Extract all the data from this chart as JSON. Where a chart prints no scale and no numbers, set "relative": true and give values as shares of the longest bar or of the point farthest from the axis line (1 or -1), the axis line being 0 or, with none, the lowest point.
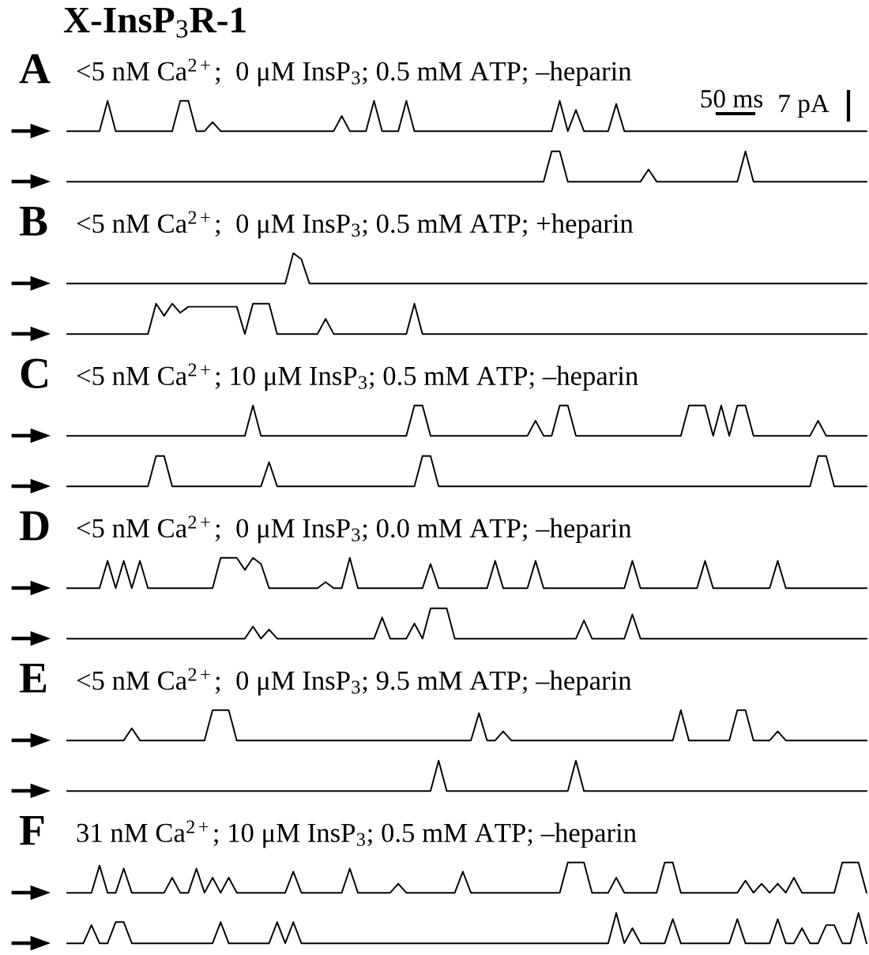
{
  "chart_data": [
    {
      "type": "step",
      "relative": true,
      "title": "A",
      "subtitle": "<5 nM Ca$^{2+}$;  0 μM InsP$_{3}$; 0.5 mM ATP; –heparin",
      "annotations": [
        "X-InsP$_{3}$R-1",
        "50 ms",
        "7 pA"
      ],
      "color": "#000000",
      "categories": [
        null,
        null,
        null,
        null,
        null,
        null,
        null,
        null,
        null,
        null,
        null,
        null,
        null,
        null,
        null,
        null,
        null,
        null,
        null,
        null,
        null,
        null,
        null,
        null,
        null,
        null,
        null,
        null,
        null,
        null,
        null,
        null,
        null,
        null,
        null,
        null,
        null,
        null,
        null,
        null,
        null,
        null,
        null,
        null,
        null,
        null,
        null,
        null,
        null,
        null,
        null,
        null,
        null,
        null,
        null,
        null,
        null,
        null,
        null,
        null,
        null,
        null,
        null,
        null,
        null,
        null,
        null,
        null,
        null,
        null,
        null,
        null,
        null,
        null,
        null,
        null,
        null,
        null,
        null,
        null,
        null,
        null,
        null,
        null,
        null,
        null,
        null,
        null,
        null,
        null,
        null,
        null,
        null,
        null,
        null,
        null,
        null,
        null,
        null,
        null
      ],
      "values": [
        0,
        0,
        0,
        0,
        0,
        1,
        0,
        0,
        0,
        0,
        0,
        0,
        0,
        0,
        1,
        1,
        0,
        0,
        0.3,
        0,
        0,
        0,
        0,
        0,
        0,
        0,
        0,
        0,
        0,
        0,
        0,
        0,
        0,
        0,
        0.5,
        0,
        0,
        0,
        1,
        0,
        0,
        0,
        1,
        0,
        0,
        0,
        0,
        0,
        0,
        0,
        0,
        0,
        0,
        0,
        0,
        0,
        0,
        0,
        0,
        0,
        0,
        1,
        0,
        0.7,
        0,
        0,
        0,
        0,
        0.9,
        0,
        0,
        0,
        0,
        0,
        0,
        0,
        0,
        0,
        0,
        0,
        0,
        0,
        0,
        0,
        0,
        0,
        0,
        0,
        0,
        0,
        0,
        0,
        0,
        0,
        0,
        0,
        0,
        0,
        0,
        0
      ]
    },
    {
      "type": "step",
      "relative": true,
      "color": "#000000",
      "categories": [
        null,
        null,
        null,
        null,
        null,
        null,
        null,
        null,
        null,
        null,
        null,
        null,
        null,
        null,
        null,
        null,
        null,
        null,
        null,
        null,
        null,
        null,
        null,
        null,
        null,
        null,
        null,
        null,
        null,
        null,
        null,
        null,
        null,
        null,
        null,
        null,
        null,
        null,
        null,
        null,
        null,
        null,
        null,
        null,
        null,
        null,
        null,
        null,
        null,
        null,
        null,
        null,
        null,
        null,
        null,
        null,
        null,
        null,
        null,
        null,
        null,
        null,
        null,
        null,
        null,
        null,
        null,
        null,
        null,
        null,
        null,
        null,
        null,
        null,
        null,
        null,
        null,
        null,
        null,
        null,
        null,
        null,
        null,
        null,
        null,
        null,
        null,
        null,
        null,
        null,
        null,
        null,
        null,
        null,
        null,
        null,
        null,
        null,
        null,
        null
      ],
      "values": [
        0,
        0,
        0,
        0,
        0,
        0,
        0,
        0,
        0,
        0,
        0,
        0,
        0,
        0,
        0,
        0,
        0,
        0,
        0,
        0,
        0,
        0,
        0,
        0,
        0,
        0,
        0,
        0,
        0,
        0,
        0,
        0,
        0,
        0,
        0,
        0,
        0,
        0,
        0,
        0,
        0,
        0,
        0,
        0,
        0,
        0,
        0,
        0,
        0,
        0,
        0,
        0,
        0,
        0,
        0,
        0,
        0,
        0,
        0,
        0,
        1,
        1,
        0,
        0,
        0,
        0,
        0,
        0,
        0,
        0,
        0,
        0,
        0.4,
        0,
        0,
        0,
        0,
        0,
        0,
        0,
        0,
        0,
        0,
        0,
        1,
        0,
        0,
        0,
        0,
        0,
        0,
        0,
        0,
        0,
        0,
        0,
        0,
        0,
        0,
        0
      ]
    },
    {
      "type": "step",
      "relative": true,
      "title": "B",
      "subtitle": "<5 nM Ca$^{2+}$;  0 μM InsP$_{3}$; 0.5 mM ATP; +heparin",
      "color": "#000000",
      "categories": [
        null,
        null,
        null,
        null,
        null,
        null,
        null,
        null,
        null,
        null,
        null,
        null,
        null,
        null,
        null,
        null,
        null,
        null,
        null,
        null,
        null,
        null,
        null,
        null,
        null,
        null,
        null,
        null,
        null,
        null,
        null,
        null,
        null,
        null,
        null,
        null,
        null,
        null,
        null,
        null,
        null,
        null,
        null,
        null,
        null,
        null,
        null,
        null,
        null,
        null,
        null,
        null,
        null,
        null,
        null,
        null,
        null,
        null,
        null,
        null,
        null,
        null,
        null,
        null,
        null,
        null,
        null,
        null,
        null,
        null,
        null,
        null,
        null,
        null,
        null,
        null,
        null,
        null,
        null,
        null,
        null,
        null,
        null,
        null,
        null,
        null,
        null,
        null,
        null,
        null,
        null,
        null,
        null,
        null,
        null,
        null,
        null,
        null,
        null,
        null
      ],
      "values": [
        0,
        0,
        0,
        0,
        0,
        0,
        0,
        0,
        0,
        0,
        0,
        0,
        0,
        0,
        0,
        0,
        0,
        0,
        0,
        0,
        0,
        0,
        0,
        0,
        0,
        0,
        0,
        0,
        1,
        0.8,
        0,
        0,
        0,
        0,
        0,
        0,
        0,
        0,
        0,
        0,
        0,
        0,
        0,
        0,
        0,
        0,
        0,
        0,
        0,
        0,
        0,
        0,
        0,
        0,
        0,
        0,
        0,
        0,
        0,
        0,
        0,
        0,
        0,
        0,
        0,
        0,
        0,
        0,
        0,
        0,
        0,
        0,
        0,
        0,
        0,
        0,
        0,
        0,
        0,
        0,
        0,
        0,
        0,
        0,
        0,
        0,
        0,
        0,
        0,
        0,
        0,
        0,
        0,
        0,
        0,
        0,
        0,
        0,
        0,
        0
      ]
    },
    {
      "type": "step",
      "relative": true,
      "color": "#000000",
      "categories": [
        null,
        null,
        null,
        null,
        null,
        null,
        null,
        null,
        null,
        null,
        null,
        null,
        null,
        null,
        null,
        null,
        null,
        null,
        null,
        null,
        null,
        null,
        null,
        null,
        null,
        null,
        null,
        null,
        null,
        null,
        null,
        null,
        null,
        null,
        null,
        null,
        null,
        null,
        null,
        null,
        null,
        null,
        null,
        null,
        null,
        null,
        null,
        null,
        null,
        null,
        null,
        null,
        null,
        null,
        null,
        null,
        null,
        null,
        null,
        null,
        null,
        null,
        null,
        null,
        null,
        null,
        null,
        null,
        null,
        null,
        null,
        null,
        null,
        null,
        null,
        null,
        null,
        null,
        null,
        null,
        null,
        null,
        null,
        null,
        null,
        null,
        null,
        null,
        null,
        null,
        null,
        null,
        null,
        null,
        null,
        null,
        null,
        null,
        null,
        null
      ],
      "values": [
        0,
        0,
        0,
        0,
        0,
        0,
        0,
        0,
        0,
        0,
        0,
        1,
        0.6,
        1,
        0.7,
        0.9,
        0.9,
        0.9,
        0.9,
        0.9,
        0.9,
        0.9,
        0,
        1,
        1,
        1,
        0,
        0,
        0,
        0,
        0,
        0,
        0.5,
        0,
        0,
        0,
        0,
        0,
        0,
        0,
        0,
        0,
        0,
        1,
        0,
        0,
        0,
        0,
        0,
        0,
        0,
        0,
        0,
        0,
        0,
        0,
        0,
        0,
        0,
        0,
        0,
        0,
        0,
        0,
        0,
        0,
        0,
        0,
        0,
        0,
        0,
        0,
        0,
        0,
        0,
        0,
        0,
        0,
        0,
        0,
        0,
        0,
        0,
        0,
        0,
        0,
        0,
        0,
        0,
        0,
        0,
        0,
        0,
        0,
        0,
        0,
        0,
        0,
        0,
        0
      ]
    },
    {
      "type": "step",
      "relative": true,
      "title": "C",
      "subtitle": "<5 nM Ca$^{2+}$; 10 μM InsP$_{3}$; 0.5 mM ATP; –heparin",
      "color": "#000000",
      "categories": [
        null,
        null,
        null,
        null,
        null,
        null,
        null,
        null,
        null,
        null,
        null,
        null,
        null,
        null,
        null,
        null,
        null,
        null,
        null,
        null,
        null,
        null,
        null,
        null,
        null,
        null,
        null,
        null,
        null,
        null,
        null,
        null,
        null,
        null,
        null,
        null,
        null,
        null,
        null,
        null,
        null,
        null,
        null,
        null,
        null,
        null,
        null,
        null,
        null,
        null,
        null,
        null,
        null,
        null,
        null,
        null,
        null,
        null,
        null,
        null,
        null,
        null,
        null,
        null,
        null,
        null,
        null,
        null,
        null,
        null,
        null,
        null,
        null,
        null,
        null,
        null,
        null,
        null,
        null,
        null,
        null,
        null,
        null,
        null,
        null,
        null,
        null,
        null,
        null,
        null,
        null,
        null,
        null,
        null,
        null,
        null,
        null,
        null,
        null,
        null
      ],
      "values": [
        0,
        0,
        0,
        0,
        0,
        0,
        0,
        0,
        0,
        0,
        0,
        0,
        0,
        0,
        0,
        0,
        0,
        0,
        0,
        0,
        0,
        0,
        0,
        1,
        0,
        0,
        0,
        0,
        0,
        0,
        0,
        0,
        0,
        0,
        0,
        0,
        0,
        0,
        0,
        0,
        0,
        0,
        0,
        1,
        1,
        0,
        0,
        0,
        0,
        0,
        0,
        0,
        0,
        0,
        0,
        0,
        0,
        0,
        0.5,
        0,
        0,
        1,
        1,
        0,
        0,
        0,
        0,
        0,
        0,
        0,
        0,
        0,
        0,
        0,
        0,
        0,
        0,
        1,
        1,
        1,
        0,
        1,
        0,
        1,
        1,
        0,
        0,
        0,
        0,
        0,
        0,
        0,
        0,
        0.5,
        0,
        0,
        0,
        0,
        0,
        0
      ]
    },
    {
      "type": "step",
      "relative": true,
      "color": "#000000",
      "categories": [
        null,
        null,
        null,
        null,
        null,
        null,
        null,
        null,
        null,
        null,
        null,
        null,
        null,
        null,
        null,
        null,
        null,
        null,
        null,
        null,
        null,
        null,
        null,
        null,
        null,
        null,
        null,
        null,
        null,
        null,
        null,
        null,
        null,
        null,
        null,
        null,
        null,
        null,
        null,
        null,
        null,
        null,
        null,
        null,
        null,
        null,
        null,
        null,
        null,
        null,
        null,
        null,
        null,
        null,
        null,
        null,
        null,
        null,
        null,
        null,
        null,
        null,
        null,
        null,
        null,
        null,
        null,
        null,
        null,
        null,
        null,
        null,
        null,
        null,
        null,
        null,
        null,
        null,
        null,
        null,
        null,
        null,
        null,
        null,
        null,
        null,
        null,
        null,
        null,
        null,
        null,
        null,
        null,
        null,
        null,
        null,
        null,
        null,
        null,
        null
      ],
      "values": [
        0,
        0,
        0,
        0,
        0,
        0,
        0,
        0,
        0,
        0,
        0,
        1,
        1,
        0,
        0,
        0,
        0,
        0,
        0,
        0,
        0,
        0,
        0,
        0,
        0,
        0.8,
        0,
        0,
        0,
        0,
        0,
        0,
        0,
        0,
        0,
        0,
        0,
        0,
        0,
        0,
        0,
        0,
        0,
        0,
        1,
        1,
        0,
        0,
        0,
        0,
        0,
        0,
        0,
        0,
        0,
        0,
        0,
        0,
        0,
        0,
        0,
        0,
        0,
        0,
        0,
        0,
        0,
        0,
        0,
        0,
        0,
        0,
        0,
        0,
        0,
        0,
        0,
        0,
        0,
        0,
        0,
        0,
        0,
        0,
        0,
        0,
        0,
        0,
        0,
        0,
        0,
        0,
        0,
        1,
        1,
        0,
        0,
        0,
        0,
        0
      ]
    },
    {
      "type": "step",
      "relative": true,
      "title": "D",
      "subtitle": "<5 nM Ca$^{2+}$;  0 μM InsP$_{3}$; 0.0 mM ATP; –heparin",
      "color": "#000000",
      "categories": [
        null,
        null,
        null,
        null,
        null,
        null,
        null,
        null,
        null,
        null,
        null,
        null,
        null,
        null,
        null,
        null,
        null,
        null,
        null,
        null,
        null,
        null,
        null,
        null,
        null,
        null,
        null,
        null,
        null,
        null,
        null,
        null,
        null,
        null,
        null,
        null,
        null,
        null,
        null,
        null,
        null,
        null,
        null,
        null,
        null,
        null,
        null,
        null,
        null,
        null,
        null,
        null,
        null,
        null,
        null,
        null,
        null,
        null,
        null,
        null,
        null,
        null,
        null,
        null,
        null,
        null,
        null,
        null,
        null,
        null,
        null,
        null,
        null,
        null,
        null,
        null,
        null,
        null,
        null,
        null,
        null,
        null,
        null,
        null,
        null,
        null,
        null,
        null,
        null,
        null,
        null,
        null,
        null,
        null,
        null,
        null,
        null,
        null,
        null,
        null
      ],
      "values": [
        0,
        0,
        0,
        0,
        0,
        0.9,
        0,
        0.9,
        0,
        0.9,
        0,
        0,
        0,
        0,
        0,
        0,
        0,
        0,
        0,
        1,
        1,
        1,
        0.6,
        1,
        0.8,
        0,
        0,
        0,
        0,
        0,
        0,
        0,
        0.2,
        0,
        0,
        1,
        0,
        0,
        0,
        0,
        0,
        0,
        0,
        0,
        0,
        0.8,
        0,
        0,
        0,
        0,
        0,
        0,
        0,
        0.9,
        0,
        0,
        0,
        0,
        0.9,
        0,
        0,
        0,
        0,
        0,
        0,
        0,
        0,
        0,
        0,
        0,
        0.9,
        0,
        0,
        0,
        0,
        0,
        0,
        0,
        0,
        0.9,
        0,
        0,
        0,
        0,
        0,
        0,
        0,
        0,
        0.9,
        0,
        0,
        0,
        0,
        0,
        0,
        0,
        0,
        0,
        0,
        0
      ]
    },
    {
      "type": "step",
      "relative": true,
      "color": "#000000",
      "categories": [
        null,
        null,
        null,
        null,
        null,
        null,
        null,
        null,
        null,
        null,
        null,
        null,
        null,
        null,
        null,
        null,
        null,
        null,
        null,
        null,
        null,
        null,
        null,
        null,
        null,
        null,
        null,
        null,
        null,
        null,
        null,
        null,
        null,
        null,
        null,
        null,
        null,
        null,
        null,
        null,
        null,
        null,
        null,
        null,
        null,
        null,
        null,
        null,
        null,
        null,
        null,
        null,
        null,
        null,
        null,
        null,
        null,
        null,
        null,
        null,
        null,
        null,
        null,
        null,
        null,
        null,
        null,
        null,
        null,
        null,
        null,
        null,
        null,
        null,
        null,
        null,
        null,
        null,
        null,
        null,
        null,
        null,
        null,
        null,
        null,
        null,
        null,
        null,
        null,
        null,
        null,
        null,
        null,
        null,
        null,
        null,
        null,
        null,
        null,
        null
      ],
      "values": [
        0,
        0,
        0,
        0,
        0,
        0,
        0,
        0,
        0,
        0,
        0,
        0,
        0,
        0,
        0,
        0,
        0,
        0,
        0,
        0,
        0,
        0,
        0,
        0.4,
        0,
        0.3,
        0,
        0,
        0,
        0,
        0,
        0,
        0,
        0,
        0,
        0,
        0,
        0,
        0,
        0.7,
        0,
        0,
        0,
        0.5,
        0,
        1,
        1,
        1,
        0,
        0,
        0,
        0,
        0,
        0,
        0,
        0,
        0,
        0,
        0,
        0,
        0,
        0,
        0,
        0,
        0.6,
        0,
        0,
        0,
        0,
        0,
        0.8,
        0,
        0,
        0,
        0,
        0,
        0,
        0,
        0,
        0,
        0,
        0,
        0,
        0,
        0,
        0,
        0,
        0,
        0,
        0,
        0,
        0,
        0,
        0,
        0,
        0,
        0,
        0,
        0,
        0
      ]
    },
    {
      "type": "step",
      "relative": true,
      "title": "E",
      "subtitle": "<5 nM Ca$^{2+}$;  0 μM InsP$_{3}$; 9.5 mM ATP; –heparin",
      "color": "#000000",
      "categories": [
        null,
        null,
        null,
        null,
        null,
        null,
        null,
        null,
        null,
        null,
        null,
        null,
        null,
        null,
        null,
        null,
        null,
        null,
        null,
        null,
        null,
        null,
        null,
        null,
        null,
        null,
        null,
        null,
        null,
        null,
        null,
        null,
        null,
        null,
        null,
        null,
        null,
        null,
        null,
        null,
        null,
        null,
        null,
        null,
        null,
        null,
        null,
        null,
        null,
        null,
        null,
        null,
        null,
        null,
        null,
        null,
        null,
        null,
        null,
        null,
        null,
        null,
        null,
        null,
        null,
        null,
        null,
        null,
        null,
        null,
        null,
        null,
        null,
        null,
        null,
        null,
        null,
        null,
        null,
        null,
        null,
        null,
        null,
        null,
        null,
        null,
        null,
        null,
        null,
        null,
        null,
        null,
        null,
        null,
        null,
        null,
        null,
        null,
        null,
        null
      ],
      "values": [
        0,
        0,
        0,
        0,
        0,
        0,
        0,
        0,
        0.4,
        0,
        0,
        0,
        0,
        0,
        0,
        0,
        0,
        0,
        1,
        1,
        1,
        0,
        0,
        0,
        0,
        0,
        0,
        0,
        0,
        0,
        0,
        0,
        0,
        0,
        0,
        0,
        0,
        0,
        0,
        0,
        0,
        0,
        0,
        0,
        0,
        0,
        0,
        0,
        0,
        0,
        0,
        0.9,
        0,
        0,
        0.3,
        0,
        0,
        0,
        0,
        0,
        0,
        0,
        0,
        0,
        0,
        0,
        0,
        0,
        0,
        0,
        0,
        0,
        0,
        0,
        0,
        0,
        1,
        0,
        0,
        0,
        0,
        0,
        0,
        1,
        1,
        0,
        0,
        0,
        0.3,
        0,
        0,
        0,
        0,
        0,
        0,
        0,
        0,
        0,
        0,
        0
      ]
    },
    {
      "type": "step",
      "relative": true,
      "color": "#000000",
      "categories": [
        null,
        null,
        null,
        null,
        null,
        null,
        null,
        null,
        null,
        null,
        null,
        null,
        null,
        null,
        null,
        null,
        null,
        null,
        null,
        null,
        null,
        null,
        null,
        null,
        null,
        null,
        null,
        null,
        null,
        null,
        null,
        null,
        null,
        null,
        null,
        null,
        null,
        null,
        null,
        null,
        null,
        null,
        null,
        null,
        null,
        null,
        null,
        null,
        null,
        null,
        null,
        null,
        null,
        null,
        null,
        null,
        null,
        null,
        null,
        null,
        null,
        null,
        null,
        null,
        null,
        null,
        null,
        null,
        null,
        null,
        null,
        null,
        null,
        null,
        null,
        null,
        null,
        null,
        null,
        null,
        null,
        null,
        null,
        null,
        null,
        null,
        null,
        null,
        null,
        null,
        null,
        null,
        null,
        null,
        null,
        null,
        null,
        null,
        null,
        null
      ],
      "values": [
        0,
        0,
        0,
        0,
        0,
        0,
        0,
        0,
        0,
        0,
        0,
        0,
        0,
        0,
        0,
        0,
        0,
        0,
        0,
        0,
        0,
        0,
        0,
        0,
        0,
        0,
        0,
        0,
        0,
        0,
        0,
        0,
        0,
        0,
        0,
        0,
        0,
        0,
        0,
        0,
        0,
        0,
        0,
        0,
        0,
        0,
        1,
        0,
        0,
        0,
        0,
        0,
        0,
        0,
        0,
        0,
        0,
        0,
        0,
        0,
        0,
        0,
        0,
        1,
        0,
        0,
        0,
        0,
        0,
        0,
        0,
        0,
        0,
        0,
        0,
        0,
        0,
        0,
        0,
        0,
        0,
        0,
        0,
        0,
        0,
        0,
        0,
        0,
        0,
        0,
        0,
        0,
        0,
        0,
        0,
        0,
        0,
        0,
        0,
        0
      ]
    },
    {
      "type": "step",
      "relative": true,
      "title": "F",
      "subtitle": "31 nM Ca$^{2+}$; 10 μM InsP$_{3}$; 0.5 mM ATP; –heparin",
      "color": "#000000",
      "categories": [
        null,
        null,
        null,
        null,
        null,
        null,
        null,
        null,
        null,
        null,
        null,
        null,
        null,
        null,
        null,
        null,
        null,
        null,
        null,
        null,
        null,
        null,
        null,
        null,
        null,
        null,
        null,
        null,
        null,
        null,
        null,
        null,
        null,
        null,
        null,
        null,
        null,
        null,
        null,
        null,
        null,
        null,
        null,
        null,
        null,
        null,
        null,
        null,
        null,
        null,
        null,
        null,
        null,
        null,
        null,
        null,
        null,
        null,
        null,
        null,
        null,
        null,
        null,
        null,
        null,
        null,
        null,
        null,
        null,
        null,
        null,
        null,
        null,
        null,
        null,
        null,
        null,
        null,
        null,
        null,
        null,
        null,
        null,
        null,
        null,
        null,
        null,
        null,
        null,
        null,
        null,
        null,
        null,
        null,
        null,
        null,
        null,
        null,
        null,
        null
      ],
      "values": [
        0,
        0,
        0,
        0,
        0.9,
        0,
        0,
        0.8,
        0,
        0,
        0,
        0,
        0,
        0.5,
        0,
        0,
        0.8,
        0,
        0.5,
        0,
        0.5,
        0,
        0,
        0,
        0,
        0,
        0,
        0,
        0.7,
        0,
        0,
        0,
        0,
        0,
        0,
        0.8,
        0,
        0,
        0,
        0,
        0,
        0.3,
        0,
        0,
        0,
        0,
        0,
        0,
        0,
        0.7,
        0,
        0,
        0,
        0,
        0,
        0,
        0,
        0,
        0,
        0,
        0,
        0,
        1,
        1,
        1,
        0,
        0,
        0,
        0.5,
        0,
        0,
        0,
        0,
        0,
        1,
        1,
        0,
        0,
        0,
        0,
        0,
        0,
        0,
        0,
        0.4,
        0,
        0.3,
        0,
        0.3,
        0,
        0.5,
        0,
        0,
        0,
        0,
        0,
        1,
        1,
        1,
        0
      ]
    },
    {
      "type": "step",
      "relative": true,
      "color": "#000000",
      "categories": [
        null,
        null,
        null,
        null,
        null,
        null,
        null,
        null,
        null,
        null,
        null,
        null,
        null,
        null,
        null,
        null,
        null,
        null,
        null,
        null,
        null,
        null,
        null,
        null,
        null,
        null,
        null,
        null,
        null,
        null,
        null,
        null,
        null,
        null,
        null,
        null,
        null,
        null,
        null,
        null,
        null,
        null,
        null,
        null,
        null,
        null,
        null,
        null,
        null,
        null,
        null,
        null,
        null,
        null,
        null,
        null,
        null,
        null,
        null,
        null,
        null,
        null,
        null,
        null,
        null,
        null,
        null,
        null,
        null,
        null,
        null,
        null,
        null,
        null,
        null,
        null,
        null,
        null,
        null,
        null,
        null,
        null,
        null,
        null,
        null,
        null,
        null,
        null,
        null,
        null,
        null,
        null,
        null,
        null,
        null,
        null,
        null,
        null,
        null,
        null
      ],
      "values": [
        0,
        0,
        0,
        0.6,
        0,
        0,
        0.7,
        0.7,
        0,
        0,
        0,
        0,
        0,
        0,
        0,
        0,
        0,
        0,
        0,
        0.7,
        0,
        0,
        0,
        0,
        0,
        0,
        0.7,
        0,
        0.7,
        0,
        0,
        0,
        0,
        0,
        0,
        0,
        0,
        0,
        0,
        0,
        0,
        0,
        0,
        0,
        0,
        0,
        0,
        0,
        0,
        0,
        0,
        0,
        0,
        0,
        0,
        0,
        0,
        0,
        0,
        0,
        0,
        0,
        0,
        0,
        0,
        0,
        0,
        0,
        1,
        0,
        0.5,
        0,
        0,
        0,
        0,
        0.8,
        0,
        0,
        0,
        0,
        0,
        0,
        0,
        0.8,
        0,
        0,
        0,
        0,
        0.8,
        0,
        0,
        0.5,
        0,
        0,
        0.6,
        0.6,
        0,
        0,
        1,
        0
      ]
    }
  ]
}
